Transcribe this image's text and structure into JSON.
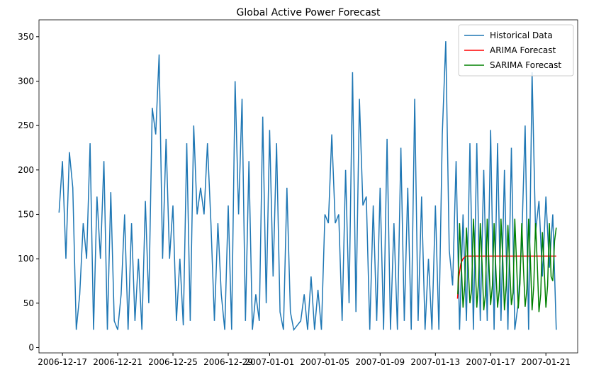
{
  "chart_data": {
    "type": "line",
    "title": "Global Active Power Forecast",
    "xlim": [
      -1.7,
      37.3
    ],
    "ylim": [
      -6,
      369
    ],
    "xticks": [
      {
        "value": 0,
        "label": "2006-12-17"
      },
      {
        "value": 4,
        "label": "2006-12-21"
      },
      {
        "value": 8,
        "label": "2006-12-25"
      },
      {
        "value": 12,
        "label": "2006-12-29"
      },
      {
        "value": 15,
        "label": "2007-01-01"
      },
      {
        "value": 19,
        "label": "2007-01-05"
      },
      {
        "value": 23,
        "label": "2007-01-09"
      },
      {
        "value": 27,
        "label": "2007-01-13"
      },
      {
        "value": 31,
        "label": "2007-01-17"
      },
      {
        "value": 35,
        "label": "2007-01-21"
      }
    ],
    "yticks": [
      0,
      50,
      100,
      150,
      200,
      250,
      300,
      350
    ],
    "legend": "upper right",
    "series": [
      {
        "name": "Historical Data",
        "color": "#1f77b4",
        "x": [
          -0.25,
          0,
          0.25,
          0.5,
          0.75,
          1,
          1.25,
          1.5,
          1.75,
          2,
          2.25,
          2.5,
          2.75,
          3,
          3.25,
          3.5,
          3.75,
          4,
          4.25,
          4.5,
          4.75,
          5,
          5.25,
          5.5,
          5.75,
          6,
          6.25,
          6.5,
          6.75,
          7,
          7.25,
          7.5,
          7.75,
          8,
          8.25,
          8.5,
          8.75,
          9,
          9.25,
          9.5,
          9.75,
          10,
          10.25,
          10.5,
          10.75,
          11,
          11.25,
          11.5,
          11.75,
          12,
          12.25,
          12.5,
          12.75,
          13,
          13.25,
          13.5,
          13.75,
          14,
          14.25,
          14.5,
          14.75,
          15,
          15.25,
          15.5,
          15.75,
          16,
          16.25,
          16.5,
          16.75,
          17,
          17.25,
          17.5,
          17.75,
          18,
          18.25,
          18.5,
          18.75,
          19,
          19.25,
          19.5,
          19.75,
          20,
          20.25,
          20.5,
          20.75,
          21,
          21.25,
          21.5,
          21.75,
          22,
          22.25,
          22.5,
          22.75,
          23,
          23.25,
          23.5,
          23.75,
          24,
          24.25,
          24.5,
          24.75,
          25,
          25.25,
          25.5,
          25.75,
          26,
          26.25,
          26.5,
          26.75,
          27,
          27.25,
          27.5,
          27.75,
          28,
          28.25,
          28.5,
          28.75,
          29,
          29.25,
          29.5,
          29.75,
          30,
          30.25,
          30.5,
          30.75,
          31,
          31.25,
          31.5,
          31.75,
          32,
          32.25,
          32.5,
          32.75,
          33,
          33.25,
          33.5,
          33.75,
          34,
          34.25,
          34.5,
          34.75,
          35,
          35.25,
          35.5,
          35.75
        ],
        "values": [
          152,
          210,
          100,
          220,
          180,
          20,
          60,
          140,
          100,
          230,
          20,
          170,
          100,
          210,
          20,
          175,
          30,
          20,
          60,
          150,
          20,
          140,
          30,
          100,
          20,
          165,
          50,
          270,
          240,
          330,
          100,
          235,
          100,
          160,
          30,
          100,
          25,
          230,
          30,
          250,
          150,
          180,
          150,
          230,
          140,
          30,
          140,
          60,
          20,
          160,
          20,
          300,
          150,
          280,
          30,
          210,
          20,
          60,
          30,
          260,
          50,
          245,
          80,
          230,
          40,
          20,
          180,
          40,
          20,
          25,
          30,
          60,
          20,
          80,
          20,
          65,
          20,
          150,
          140,
          240,
          140,
          150,
          30,
          200,
          50,
          310,
          40,
          280,
          160,
          170,
          20,
          160,
          30,
          180,
          20,
          235,
          20,
          140,
          20,
          225,
          30,
          180,
          20,
          280,
          30,
          170,
          20,
          100,
          20,
          160,
          20,
          240,
          345,
          110,
          70,
          210,
          20,
          150,
          30,
          230,
          20,
          230,
          30,
          200,
          30,
          245,
          20,
          230,
          30,
          200,
          20,
          225,
          20,
          50,
          120,
          250,
          20,
          310,
          130,
          165,
          80,
          170,
          90,
          150,
          20
        ]
      },
      {
        "name": "ARIMA Forecast",
        "color": "#ff0000",
        "x": [
          28.6,
          28.7,
          28.85,
          29,
          29.2,
          35.75
        ],
        "values": [
          55,
          80,
          95,
          100,
          103,
          103
        ]
      },
      {
        "name": "SARIMA Forecast",
        "color": "#008000",
        "x": [
          28.625,
          28.75,
          28.875,
          29,
          29.125,
          29.25,
          29.375,
          29.5,
          29.625,
          29.75,
          29.875,
          30,
          30.125,
          30.25,
          30.375,
          30.5,
          30.625,
          30.75,
          30.875,
          31,
          31.125,
          31.25,
          31.375,
          31.5,
          31.625,
          31.75,
          31.875,
          32,
          32.125,
          32.25,
          32.375,
          32.5,
          32.625,
          32.75,
          32.875,
          33,
          33.125,
          33.25,
          33.375,
          33.5,
          33.625,
          33.75,
          33.875,
          34,
          34.125,
          34.25,
          34.375,
          34.5,
          34.625,
          34.75,
          34.875,
          35,
          35.125,
          35.25,
          35.375,
          35.5,
          35.625,
          35.75
        ],
        "values": [
          60,
          140,
          95,
          45,
          70,
          135,
          90,
          50,
          65,
          145,
          100,
          45,
          75,
          140,
          95,
          42,
          60,
          145,
          95,
          48,
          70,
          140,
          90,
          45,
          65,
          145,
          100,
          42,
          70,
          138,
          92,
          48,
          62,
          145,
          95,
          44,
          72,
          140,
          90,
          46,
          66,
          145,
          100,
          42,
          70,
          140,
          95,
          40,
          60,
          130,
          90,
          45,
          70,
          140,
          80,
          75,
          120,
          135
        ]
      }
    ]
  }
}
